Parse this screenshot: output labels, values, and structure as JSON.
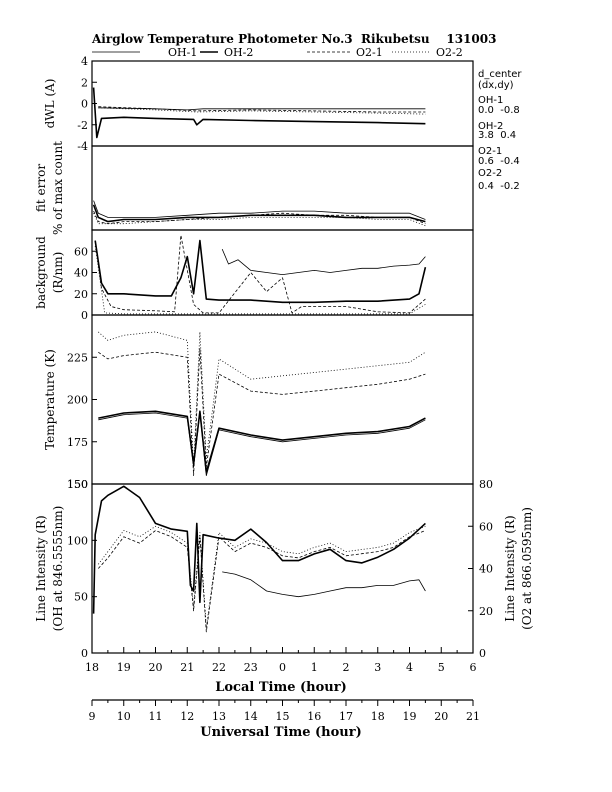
{
  "chart_data": {
    "type": "line",
    "title": "Airglow Temperature Photometer No.3  Rikubetsu    131003",
    "legend": {
      "placement": "top",
      "entries": [
        {
          "name": "OH-1",
          "style": "solid-thin"
        },
        {
          "name": "OH-2",
          "style": "solid-thick"
        },
        {
          "name": "O2-1",
          "style": "dashed"
        },
        {
          "name": "O2-2",
          "style": "dotted"
        }
      ]
    },
    "x_axes": {
      "local": {
        "label": "Local Time (hour)",
        "range": [
          18,
          30
        ],
        "tick_labels": [
          "18",
          "19",
          "20",
          "21",
          "22",
          "23",
          "0",
          "1",
          "2",
          "3",
          "4",
          "5",
          "6"
        ]
      },
      "universal": {
        "label": "Universal Time (hour)",
        "range": [
          9,
          21
        ],
        "tick_labels": [
          "9",
          "10",
          "11",
          "12",
          "13",
          "14",
          "15",
          "16",
          "17",
          "18",
          "19",
          "20",
          "21"
        ]
      }
    },
    "side_notes": {
      "header": "d_center",
      "sub": "(dx,dy)",
      "items": [
        {
          "name": "OH-1",
          "values": "0.0  -0.8"
        },
        {
          "name": "OH-2",
          "values": "3.8  0.4"
        },
        {
          "name": "O2-1",
          "values": "0.6  -0.4"
        },
        {
          "name": "O2-2",
          "values": "0.4  -0.2"
        }
      ]
    },
    "panels": [
      {
        "id": "dwl",
        "ylabel": "dWL (A)",
        "ylabel2": "",
        "ylim": [
          -4,
          4
        ],
        "tick_labels": [
          "-4",
          "-2",
          "0",
          "2",
          "4"
        ],
        "series": [
          {
            "name": "OH-1",
            "x": [
              18.2,
              20,
              21,
              21.5,
              23,
              1,
              3,
              4.5
            ],
            "y": [
              -0.4,
              -0.5,
              -0.6,
              -0.5,
              -0.5,
              -0.5,
              -0.5,
              -0.5
            ]
          },
          {
            "name": "OH-2",
            "x": [
              18.05,
              18.15,
              18.3,
              19,
              20,
              21.2,
              21.3,
              21.5,
              23,
              1,
              3,
              4.5
            ],
            "y": [
              1.5,
              -3.2,
              -1.4,
              -1.3,
              -1.4,
              -1.5,
              -2.0,
              -1.5,
              -1.6,
              -1.7,
              -1.8,
              -1.9
            ]
          },
          {
            "name": "O2-1",
            "x": [
              18.2,
              20,
              21.3,
              23,
              1,
              3,
              4.5
            ],
            "y": [
              -0.3,
              -0.5,
              -0.7,
              -0.6,
              -0.7,
              -0.8,
              -0.8
            ]
          },
          {
            "name": "O2-2",
            "x": [
              18.2,
              20,
              21.3,
              23,
              1,
              3,
              4.5
            ],
            "y": [
              -0.4,
              -0.6,
              -0.8,
              -0.7,
              -0.8,
              -0.9,
              -1.0
            ]
          }
        ]
      },
      {
        "id": "fit",
        "ylabel": "fit error",
        "ylabel2": "% of max count",
        "ylim": [
          0,
          4
        ],
        "tick_labels": [],
        "series": [
          {
            "name": "OH-1",
            "x": [
              18.05,
              18.2,
              18.5,
              19,
              20,
              21,
              22,
              23,
              0,
              1,
              2,
              3,
              4,
              4.5
            ],
            "y": [
              1.4,
              0.8,
              0.6,
              0.6,
              0.6,
              0.7,
              0.8,
              0.8,
              0.9,
              0.9,
              0.8,
              0.8,
              0.8,
              0.5
            ]
          },
          {
            "name": "OH-2",
            "x": [
              18.05,
              18.2,
              18.5,
              19,
              20,
              21,
              22,
              23,
              0,
              1,
              2,
              3,
              4,
              4.5
            ],
            "y": [
              1.2,
              0.6,
              0.4,
              0.5,
              0.5,
              0.6,
              0.6,
              0.7,
              0.7,
              0.7,
              0.6,
              0.6,
              0.6,
              0.4
            ]
          },
          {
            "name": "O2-1",
            "x": [
              18.05,
              18.2,
              18.5,
              19,
              20,
              21,
              22,
              23,
              0,
              1,
              2,
              3,
              4,
              4.5
            ],
            "y": [
              0.9,
              0.4,
              0.3,
              0.4,
              0.4,
              0.5,
              0.6,
              0.7,
              0.8,
              0.7,
              0.7,
              0.6,
              0.6,
              0.3
            ]
          },
          {
            "name": "O2-2",
            "x": [
              18.05,
              18.2,
              18.5,
              19,
              20,
              21,
              22,
              23,
              0,
              1,
              2,
              3,
              4,
              4.5
            ],
            "y": [
              0.8,
              0.3,
              0.3,
              0.3,
              0.4,
              0.5,
              0.5,
              0.6,
              0.6,
              0.6,
              0.6,
              0.5,
              0.5,
              0.2
            ]
          }
        ]
      },
      {
        "id": "bg",
        "ylabel": "background",
        "ylabel2": "(R/nm)",
        "ylim": [
          0,
          80
        ],
        "tick_labels": [
          "0",
          "20",
          "40",
          "60"
        ],
        "series": [
          {
            "name": "OH-1",
            "x": [
              22.1,
              22.3,
              22.6,
              23,
              23.5,
              0,
              0.5,
              1,
              1.5,
              2,
              2.5,
              3,
              3.5,
              4,
              4.3,
              4.5
            ],
            "y": [
              62,
              48,
              52,
              42,
              40,
              38,
              40,
              42,
              40,
              42,
              44,
              44,
              46,
              47,
              48,
              55
            ]
          },
          {
            "name": "OH-2",
            "x": [
              18.1,
              18.3,
              18.5,
              19,
              20,
              20.5,
              20.8,
              21.0,
              21.2,
              21.4,
              21.6,
              22,
              23,
              0,
              1,
              2,
              3,
              4,
              4.3,
              4.5
            ],
            "y": [
              70,
              30,
              20,
              20,
              18,
              18,
              35,
              55,
              20,
              70,
              15,
              14,
              14,
              12,
              12,
              13,
              13,
              15,
              20,
              45
            ]
          },
          {
            "name": "O2-1",
            "x": [
              18.1,
              18.3,
              18.6,
              19,
              20,
              20.6,
              20.8,
              21.2,
              21.5,
              22,
              23,
              23.5,
              0,
              0.3,
              0.6,
              1,
              2,
              3,
              4,
              4.5
            ],
            "y": [
              70,
              25,
              8,
              5,
              4,
              3,
              75,
              10,
              2,
              2,
              40,
              22,
              35,
              2,
              8,
              8,
              8,
              3,
              2,
              15
            ]
          },
          {
            "name": "O2-2",
            "x": [
              18.1,
              18.4,
              19,
              20,
              21,
              22,
              23,
              0,
              1,
              2,
              3,
              4,
              4.5
            ],
            "y": [
              65,
              2,
              1,
              1,
              1,
              1,
              1,
              1,
              1,
              1,
              1,
              1,
              10
            ]
          }
        ]
      },
      {
        "id": "temp",
        "ylabel": "Temperature (K)",
        "ylabel2": "",
        "ylim": [
          150,
          250
        ],
        "tick_labels": [
          "150",
          "175",
          "200",
          "225"
        ],
        "series": [
          {
            "name": "OH-1",
            "x": [
              18.2,
              19,
              20,
              21,
              21.2,
              21.4,
              21.6,
              22,
              23,
              0,
              1,
              2,
              3,
              4,
              4.5
            ],
            "y": [
              188,
              191,
              192,
              189,
              160,
              192,
              155,
              182,
              178,
              175,
              177,
              179,
              180,
              183,
              188
            ]
          },
          {
            "name": "OH-2",
            "x": [
              18.2,
              19,
              20,
              21,
              21.2,
              21.4,
              21.6,
              22,
              23,
              0,
              1,
              2,
              3,
              4,
              4.5
            ],
            "y": [
              189,
              192,
              193,
              190,
              162,
              193,
              157,
              183,
              179,
              176,
              178,
              180,
              181,
              184,
              189
            ]
          },
          {
            "name": "O2-1",
            "x": [
              18.2,
              18.5,
              19,
              20,
              21,
              21.2,
              21.4,
              21.6,
              22,
              23,
              0,
              1,
              2,
              3,
              4,
              4.5
            ],
            "y": [
              228,
              224,
              226,
              228,
              225,
              155,
              230,
              160,
              215,
              205,
              203,
              205,
              207,
              209,
              212,
              215
            ]
          },
          {
            "name": "O2-2",
            "x": [
              18.2,
              18.5,
              19,
              20,
              21,
              21.2,
              21.4,
              21.6,
              22,
              23,
              0,
              1,
              2,
              3,
              4,
              4.5
            ],
            "y": [
              240,
              235,
              238,
              240,
              235,
              160,
              240,
              165,
              224,
              212,
              214,
              216,
              218,
              220,
              222,
              228
            ]
          }
        ]
      },
      {
        "id": "int",
        "ylabel": "Line Intensity (R)",
        "ylabel2": "(OH at 846.5555nm)",
        "ylabel_right": "Line Intensity (R)",
        "ylabel_right2": "(O2 at 866.0595nm)",
        "ylim": [
          0,
          150
        ],
        "ylim_right": [
          0,
          80
        ],
        "tick_labels": [
          "0",
          "50",
          "100",
          "150"
        ],
        "tick_labels_right": [
          "0",
          "20",
          "40",
          "60",
          "80"
        ],
        "series": [
          {
            "name": "OH-1",
            "axis": "left",
            "x": [
              22.1,
              22.5,
              23,
              23.5,
              0,
              0.5,
              1,
              1.5,
              2,
              2.5,
              3,
              3.5,
              4,
              4.3,
              4.5
            ],
            "y": [
              72,
              70,
              65,
              55,
              52,
              50,
              52,
              55,
              58,
              58,
              60,
              60,
              64,
              65,
              55
            ]
          },
          {
            "name": "OH-2",
            "axis": "left",
            "x": [
              18.05,
              18.1,
              18.3,
              18.5,
              19,
              19.5,
              20,
              20.5,
              21,
              21.1,
              21.2,
              21.3,
              21.4,
              21.5,
              22,
              22.5,
              23,
              23.5,
              0,
              0.5,
              1,
              1.5,
              2,
              2.5,
              3,
              3.5,
              4,
              4.5
            ],
            "y": [
              35,
              105,
              135,
              140,
              148,
              138,
              115,
              110,
              108,
              60,
              55,
              115,
              45,
              105,
              102,
              100,
              110,
              98,
              82,
              82,
              88,
              92,
              82,
              80,
              85,
              92,
              102,
              115
            ]
          },
          {
            "name": "O2-1",
            "axis": "right",
            "x": [
              18.2,
              18.5,
              19,
              19.5,
              20,
              20.5,
              21,
              21.2,
              21.4,
              21.6,
              22,
              22.5,
              23,
              23.5,
              0,
              0.5,
              1,
              1.5,
              2,
              2.5,
              3,
              3.5,
              4,
              4.5
            ],
            "y": [
              40,
              45,
              55,
              52,
              58,
              55,
              50,
              20,
              55,
              10,
              55,
              48,
              52,
              50,
              46,
              45,
              48,
              50,
              46,
              47,
              48,
              50,
              55,
              58
            ]
          },
          {
            "name": "O2-2",
            "axis": "right",
            "x": [
              18.2,
              18.5,
              19,
              19.5,
              20,
              20.5,
              21,
              21.2,
              21.4,
              21.6,
              22,
              22.5,
              23,
              23.5,
              0,
              0.5,
              1,
              1.5,
              2,
              2.5,
              3,
              3.5,
              4,
              4.5
            ],
            "y": [
              42,
              48,
              58,
              55,
              60,
              57,
              52,
              22,
              57,
              12,
              57,
              50,
              54,
              52,
              48,
              47,
              50,
              52,
              48,
              49,
              50,
              52,
              57,
              60
            ]
          }
        ]
      }
    ]
  }
}
